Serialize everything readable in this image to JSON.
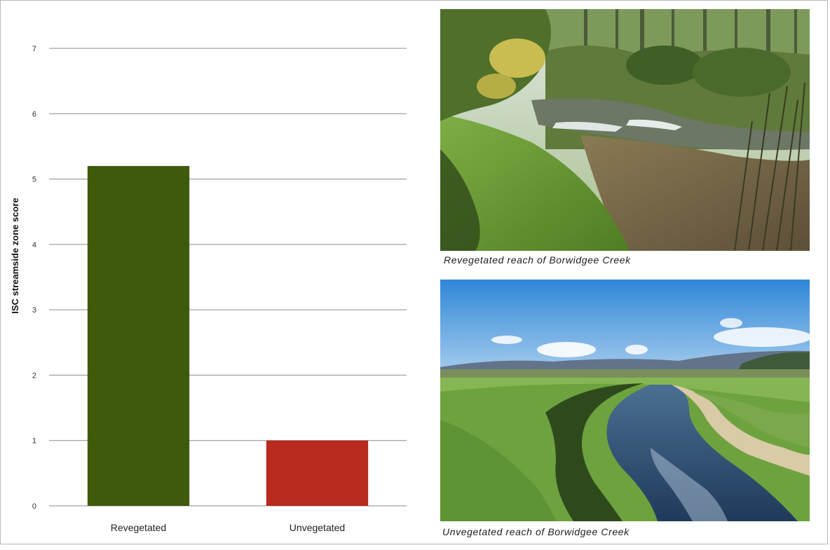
{
  "chart_data": {
    "type": "bar",
    "title": "",
    "xlabel": "",
    "ylabel": "ISC streamside zone score",
    "categories": [
      "Revegetated",
      "Unvegetated"
    ],
    "values": [
      5.2,
      1.0
    ],
    "colors": [
      "#3f5a0b",
      "#b92a1f"
    ],
    "ylim": [
      0,
      7
    ],
    "yticks": [
      "0",
      "1",
      "2",
      "3",
      "4",
      "5",
      "6",
      "7"
    ],
    "grid": true,
    "legend": "none"
  },
  "photos": [
    {
      "depicts": "revegetated-creek-photo",
      "caption": "Revegetated reach of Borwidgee Creek"
    },
    {
      "depicts": "unvegetated-creek-photo",
      "caption": "Unvegetated reach of Borwidgee Creek"
    }
  ]
}
